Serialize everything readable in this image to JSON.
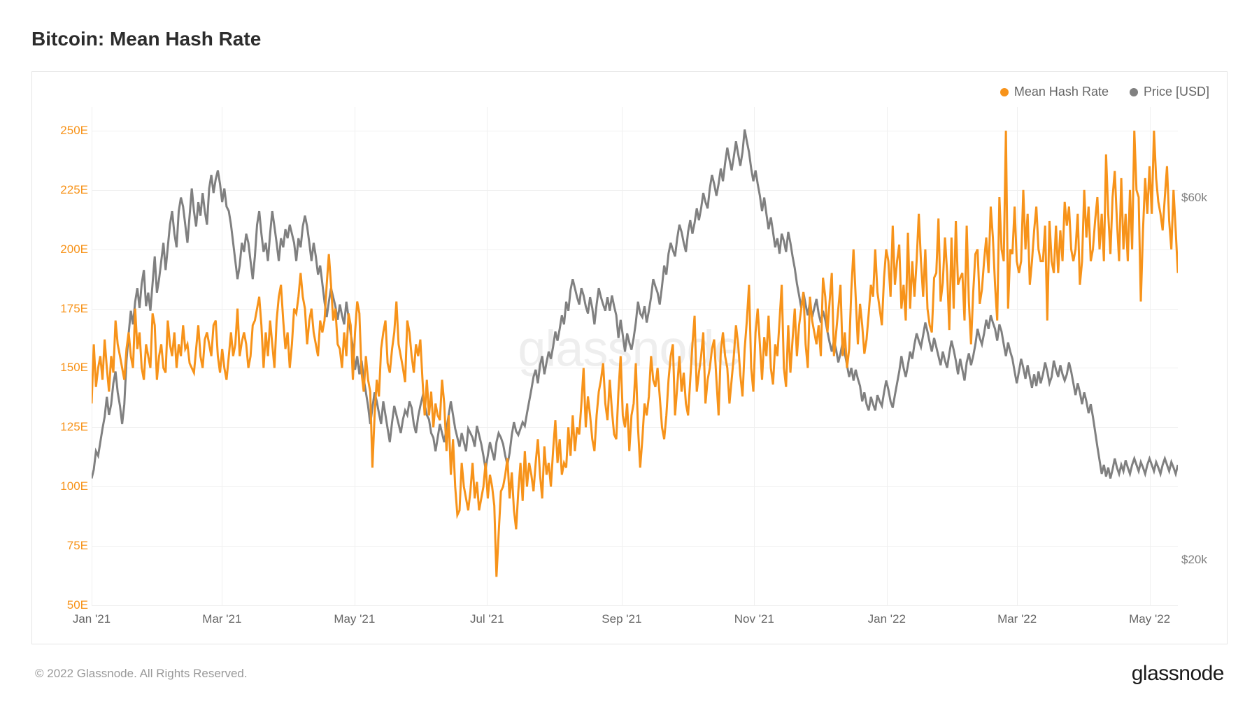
{
  "title": "Bitcoin: Mean Hash Rate",
  "watermark": "glassnode",
  "copyright": "© 2022 Glassnode. All Rights Reserved.",
  "brand": "glassnode",
  "legend": {
    "series1": {
      "label": "Mean Hash Rate",
      "color": "#f7931a"
    },
    "series2": {
      "label": "Price [USD]",
      "color": "#808080"
    }
  },
  "chart": {
    "type": "line",
    "background_color": "#ffffff",
    "border_color": "#e5e5e5",
    "grid_color": "#f0f0f0",
    "line_width": 1.5,
    "y_left": {
      "color": "#f7931a",
      "min": 50,
      "max": 260,
      "ticks": [
        {
          "value": 50,
          "label": "50E"
        },
        {
          "value": 75,
          "label": "75E"
        },
        {
          "value": 100,
          "label": "100E"
        },
        {
          "value": 125,
          "label": "125E"
        },
        {
          "value": 150,
          "label": "150E"
        },
        {
          "value": 175,
          "label": "175E"
        },
        {
          "value": 200,
          "label": "200E"
        },
        {
          "value": 225,
          "label": "225E"
        },
        {
          "value": 250,
          "label": "250E"
        }
      ]
    },
    "y_right": {
      "color": "#808080",
      "min": 15000,
      "max": 70000,
      "ticks": [
        {
          "value": 20000,
          "label": "$20k"
        },
        {
          "value": 60000,
          "label": "$60k"
        }
      ]
    },
    "x_axis": {
      "min": 0,
      "max": 500,
      "ticks": [
        {
          "value": 0,
          "label": "Jan '21"
        },
        {
          "value": 60,
          "label": "Mar '21"
        },
        {
          "value": 121,
          "label": "May '21"
        },
        {
          "value": 182,
          "label": "Jul '21"
        },
        {
          "value": 244,
          "label": "Sep '21"
        },
        {
          "value": 305,
          "label": "Nov '21"
        },
        {
          "value": 366,
          "label": "Jan '22"
        },
        {
          "value": 426,
          "label": "Mar '22"
        },
        {
          "value": 487,
          "label": "May '22"
        }
      ]
    },
    "hash_rate": [
      135,
      160,
      142,
      150,
      155,
      145,
      162,
      150,
      140,
      155,
      148,
      170,
      160,
      155,
      150,
      145,
      158,
      165,
      155,
      150,
      175,
      158,
      165,
      150,
      145,
      160,
      155,
      150,
      173,
      168,
      145,
      155,
      160,
      150,
      148,
      170,
      160,
      155,
      165,
      150,
      160,
      155,
      168,
      158,
      160,
      152,
      150,
      148,
      158,
      168,
      155,
      150,
      162,
      165,
      160,
      155,
      168,
      170,
      155,
      148,
      158,
      150,
      145,
      155,
      165,
      155,
      160,
      175,
      155,
      161,
      165,
      160,
      150,
      155,
      168,
      170,
      175,
      180,
      168,
      150,
      165,
      155,
      170,
      160,
      150,
      170,
      180,
      185,
      170,
      158,
      165,
      150,
      160,
      175,
      173,
      180,
      190,
      180,
      175,
      160,
      170,
      175,
      165,
      160,
      155,
      170,
      165,
      170,
      185,
      198,
      185,
      170,
      175,
      160,
      158,
      150,
      165,
      155,
      173,
      168,
      145,
      165,
      178,
      173,
      148,
      140,
      155,
      145,
      140,
      108,
      130,
      145,
      138,
      158,
      165,
      170,
      152,
      148,
      158,
      165,
      178,
      160,
      155,
      150,
      144,
      170,
      165,
      155,
      148,
      160,
      155,
      162,
      145,
      130,
      145,
      130,
      140,
      125,
      135,
      130,
      128,
      145,
      135,
      115,
      130,
      105,
      120,
      100,
      88,
      90,
      110,
      100,
      95,
      90,
      98,
      110,
      95,
      102,
      90,
      95,
      100,
      110,
      95,
      105,
      100,
      92,
      62,
      80,
      98,
      100,
      105,
      112,
      95,
      106,
      90,
      82,
      98,
      110,
      94,
      115,
      100,
      110,
      105,
      98,
      110,
      120,
      105,
      95,
      117,
      105,
      110,
      100,
      115,
      128,
      110,
      120,
      105,
      110,
      108,
      125,
      113,
      130,
      115,
      125,
      122,
      135,
      150,
      125,
      138,
      130,
      120,
      115,
      130,
      140,
      145,
      152,
      135,
      128,
      145,
      132,
      122,
      120,
      140,
      155,
      130,
      125,
      135,
      115,
      130,
      135,
      152,
      125,
      108,
      120,
      135,
      130,
      138,
      155,
      145,
      142,
      150,
      138,
      125,
      120,
      130,
      145,
      155,
      160,
      130,
      142,
      155,
      140,
      148,
      135,
      130,
      145,
      160,
      172,
      140,
      148,
      155,
      165,
      135,
      145,
      150,
      158,
      162,
      145,
      130,
      157,
      165,
      155,
      150,
      135,
      145,
      155,
      168,
      160,
      147,
      138,
      158,
      170,
      185,
      150,
      140,
      165,
      175,
      160,
      145,
      163,
      155,
      172,
      150,
      143,
      160,
      155,
      170,
      185,
      150,
      142,
      168,
      148,
      162,
      175,
      155,
      168,
      175,
      182,
      160,
      150,
      180,
      170,
      165,
      160,
      168,
      155,
      188,
      180,
      165,
      178,
      190,
      155,
      165,
      175,
      185,
      155,
      165,
      150,
      158,
      183,
      200,
      180,
      160,
      177,
      168,
      156,
      162,
      173,
      185,
      180,
      200,
      182,
      175,
      168,
      188,
      200,
      195,
      180,
      210,
      185,
      195,
      202,
      175,
      185,
      170,
      207,
      175,
      195,
      180,
      195,
      215,
      195,
      180,
      200,
      175,
      168,
      165,
      188,
      190,
      213,
      178,
      186,
      205,
      190,
      166,
      205,
      175,
      212,
      185,
      188,
      190,
      170,
      210,
      178,
      160,
      182,
      198,
      200,
      177,
      183,
      195,
      205,
      190,
      218,
      205,
      185,
      170,
      222,
      200,
      195,
      250,
      175,
      200,
      198,
      218,
      195,
      190,
      195,
      225,
      200,
      215,
      185,
      195,
      208,
      218,
      200,
      195,
      195,
      210,
      170,
      212,
      195,
      190,
      210,
      190,
      208,
      195,
      220,
      210,
      218,
      200,
      195,
      200,
      215,
      185,
      195,
      225,
      205,
      218,
      195,
      200,
      212,
      222,
      200,
      215,
      195,
      240,
      215,
      198,
      222,
      233,
      212,
      195,
      230,
      200,
      215,
      195,
      225,
      200,
      250,
      225,
      222,
      178,
      208,
      230,
      215,
      235,
      215,
      250,
      230,
      220,
      215,
      208,
      222,
      235,
      212,
      200,
      225,
      208,
      190
    ],
    "price": [
      29000,
      30000,
      32000,
      31500,
      33000,
      34500,
      35800,
      38000,
      36000,
      37200,
      39500,
      40800,
      38500,
      37000,
      35000,
      37200,
      42000,
      45000,
      47500,
      46000,
      48500,
      50000,
      47800,
      50500,
      52000,
      48000,
      49500,
      47500,
      50500,
      53500,
      49500,
      51000,
      53000,
      55000,
      52000,
      54500,
      57000,
      58500,
      56000,
      54500,
      58500,
      60000,
      59000,
      57000,
      55000,
      58000,
      61000,
      58500,
      56800,
      59500,
      58000,
      60500,
      58500,
      57000,
      61000,
      62500,
      60500,
      62000,
      63000,
      61500,
      59500,
      61000,
      59000,
      58500,
      57000,
      55000,
      53000,
      51000,
      52500,
      55000,
      54000,
      56000,
      55000,
      53000,
      51000,
      53500,
      57000,
      58500,
      56000,
      54000,
      55000,
      53000,
      56000,
      58500,
      56800,
      55000,
      53000,
      55500,
      54500,
      56500,
      55500,
      57000,
      56000,
      55000,
      53000,
      55500,
      54500,
      56800,
      58000,
      56800,
      55000,
      53000,
      55000,
      53500,
      51500,
      52500,
      50500,
      48500,
      46800,
      48500,
      50000,
      49000,
      48000,
      46500,
      48200,
      47000,
      46000,
      48500,
      46800,
      45000,
      43500,
      41000,
      42500,
      40500,
      42000,
      40000,
      38500,
      37000,
      35000,
      36800,
      38500,
      37500,
      36200,
      35000,
      37500,
      36000,
      34500,
      33000,
      35200,
      37000,
      36000,
      35000,
      34000,
      35500,
      36500,
      36000,
      37500,
      36800,
      35000,
      34000,
      35800,
      37000,
      38000,
      37200,
      36000,
      35500,
      34000,
      33500,
      32000,
      33500,
      35000,
      34000,
      33000,
      34500,
      36000,
      37500,
      36000,
      34500,
      33500,
      32500,
      34000,
      33000,
      32000,
      34500,
      34000,
      33500,
      32500,
      34800,
      33800,
      32800,
      31500,
      30000,
      31500,
      33000,
      32000,
      31000,
      33000,
      34000,
      33500,
      32800,
      31500,
      30500,
      31800,
      33800,
      35200,
      34200,
      33800,
      34500,
      35200,
      34800,
      36200,
      37500,
      38800,
      40200,
      41000,
      39500,
      41500,
      42500,
      40500,
      41800,
      43000,
      42200,
      43500,
      45200,
      44200,
      45500,
      47000,
      46000,
      48500,
      47500,
      49800,
      51000,
      50000,
      49000,
      48200,
      50000,
      49200,
      48000,
      47200,
      49000,
      47800,
      46000,
      48200,
      50000,
      49000,
      48200,
      47500,
      49000,
      47500,
      49200,
      48000,
      47000,
      44500,
      46500,
      44800,
      43000,
      45000,
      44000,
      43200,
      44500,
      46200,
      48500,
      47200,
      46800,
      48000,
      46200,
      47500,
      49000,
      51000,
      50200,
      49500,
      48200,
      50200,
      52500,
      51500,
      53800,
      55000,
      54200,
      53500,
      55500,
      57000,
      56200,
      55000,
      54000,
      56200,
      57500,
      56000,
      57200,
      58800,
      57500,
      58800,
      60500,
      59500,
      58800,
      61000,
      62500,
      61500,
      60200,
      61500,
      63200,
      61800,
      63800,
      65500,
      64200,
      63000,
      64500,
      66200,
      64800,
      63500,
      65000,
      67500,
      66200,
      65000,
      63200,
      61800,
      63000,
      61500,
      60200,
      58500,
      60000,
      58200,
      56500,
      57800,
      56200,
      54500,
      55500,
      53800,
      56000,
      55200,
      54000,
      56200,
      55000,
      53500,
      52200,
      50500,
      49200,
      47800,
      49500,
      48200,
      47000,
      48500,
      46800,
      47800,
      48800,
      47200,
      46200,
      47500,
      46500,
      45200,
      44000,
      43000,
      44200,
      43200,
      41800,
      42800,
      44000,
      42800,
      41500,
      40200,
      41200,
      39800,
      41000,
      40000,
      39200,
      37500,
      38500,
      37200,
      36500,
      38000,
      37200,
      36500,
      38200,
      37500,
      37000,
      38500,
      39800,
      38800,
      37500,
      36800,
      38200,
      39500,
      40800,
      42500,
      41200,
      40200,
      41500,
      43000,
      42200,
      43800,
      45000,
      44200,
      43500,
      44800,
      46200,
      45200,
      44000,
      43000,
      44500,
      43500,
      42500,
      41500,
      43000,
      42000,
      41200,
      42800,
      44200,
      43200,
      42000,
      40500,
      42200,
      41000,
      39800,
      41800,
      42800,
      41500,
      42500,
      43800,
      45500,
      44500,
      43800,
      45000,
      46500,
      45500,
      47000,
      46200,
      45500,
      44200,
      46000,
      45200,
      43800,
      42500,
      44000,
      43000,
      42200,
      40800,
      39500,
      40800,
      42200,
      41200,
      40000,
      41500,
      40200,
      39000,
      40500,
      39200,
      40800,
      39500,
      40500,
      41800,
      40800,
      39500,
      40200,
      42000,
      41000,
      40200,
      41500,
      40500,
      39800,
      40500,
      41800,
      40800,
      39500,
      38200,
      39500,
      38500,
      37200,
      38500,
      37500,
      36200,
      37200,
      35800,
      34200,
      32500,
      31000,
      29500,
      30500,
      29200,
      30200,
      29000,
      30000,
      31200,
      30200,
      29500,
      30500,
      29800,
      31000,
      30200,
      29500,
      30500,
      31200,
      30500,
      29800,
      30800,
      30200,
      29500,
      30500,
      31200,
      30500,
      29800,
      30800,
      30200,
      29500,
      30500,
      31200,
      30500,
      29800,
      30800,
      30200,
      29500,
      30500
    ]
  }
}
